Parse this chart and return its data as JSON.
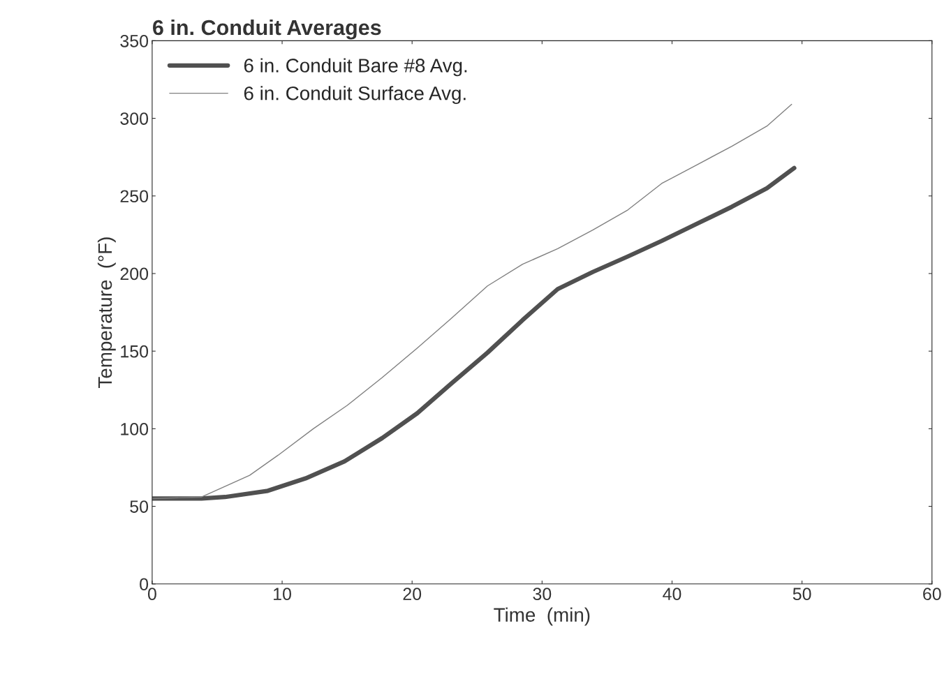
{
  "chart_data": {
    "type": "line",
    "title": "6 in. Conduit Averages",
    "xlabel": "Time  (min)",
    "ylabel": "Temperature  (°F)",
    "xlim": [
      0,
      60
    ],
    "xticks": [
      0,
      10,
      20,
      30,
      40,
      50,
      60
    ],
    "ylim": [
      0,
      350
    ],
    "yticks": [
      0,
      50,
      100,
      150,
      200,
      250,
      300,
      350
    ],
    "grid": false,
    "legend": "top left",
    "series": [
      {
        "name": "6 in. Conduit Bare #8 Avg.",
        "color": "#505050",
        "line_style": "solid",
        "x": [
          0,
          3.8,
          5.6,
          8.9,
          11.8,
          14.8,
          17.7,
          20.4,
          23,
          25.8,
          28.5,
          31.2,
          33.9,
          36.6,
          39.2,
          41.9,
          44.6,
          47.3,
          49.4
        ],
        "values": [
          55,
          55,
          56,
          60,
          68,
          79,
          94,
          110,
          129,
          149,
          170,
          190,
          201,
          211,
          221,
          232,
          243,
          255,
          268
        ]
      },
      {
        "name": "6 in. Conduit Surface Avg.",
        "color": "#808080",
        "line_style": "solid",
        "x": [
          0,
          3.8,
          7.5,
          9.7,
          12.4,
          15,
          17.7,
          20.4,
          23,
          25.8,
          28.5,
          31.2,
          33.9,
          36.6,
          39.2,
          41.9,
          44.6,
          47.3,
          49.2
        ],
        "values": [
          55,
          56,
          70,
          83,
          100,
          115,
          133,
          152,
          171,
          192,
          206,
          216,
          228,
          241,
          258,
          270,
          282,
          295,
          309
        ]
      }
    ]
  }
}
